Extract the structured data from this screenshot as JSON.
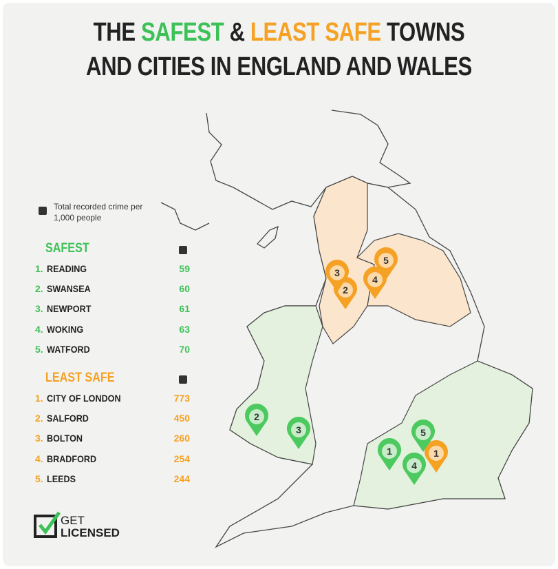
{
  "title": {
    "line1": [
      "THE",
      "SAFEST",
      "&",
      "LEAST SAFE",
      "TOWNS"
    ],
    "line2": "AND CITIES IN ENGLAND AND WALES"
  },
  "legend_note": "Total recorded crime per 1,000 people",
  "safest": {
    "heading": "SAFEST",
    "items": [
      {
        "rank": "1.",
        "name": "READING",
        "value": 59
      },
      {
        "rank": "2.",
        "name": "SWANSEA",
        "value": 60
      },
      {
        "rank": "3.",
        "name": "NEWPORT",
        "value": 61
      },
      {
        "rank": "4.",
        "name": "WOKING",
        "value": 63
      },
      {
        "rank": "5.",
        "name": "WATFORD",
        "value": 70
      }
    ]
  },
  "least_safe": {
    "heading": "LEAST SAFE",
    "items": [
      {
        "rank": "1.",
        "name": "CITY OF LONDON",
        "value": 773
      },
      {
        "rank": "2.",
        "name": "SALFORD",
        "value": 450
      },
      {
        "rank": "3.",
        "name": "BOLTON",
        "value": 260
      },
      {
        "rank": "4.",
        "name": "BRADFORD",
        "value": 254
      },
      {
        "rank": "5.",
        "name": "LEEDS",
        "value": 244
      }
    ]
  },
  "map": {
    "safest_pins": [
      "1",
      "2",
      "3",
      "4",
      "5"
    ],
    "least_safe_pins": [
      "1",
      "2",
      "3",
      "4",
      "5"
    ]
  },
  "logo": {
    "line1": "GET",
    "line2": "LICENSED"
  }
}
